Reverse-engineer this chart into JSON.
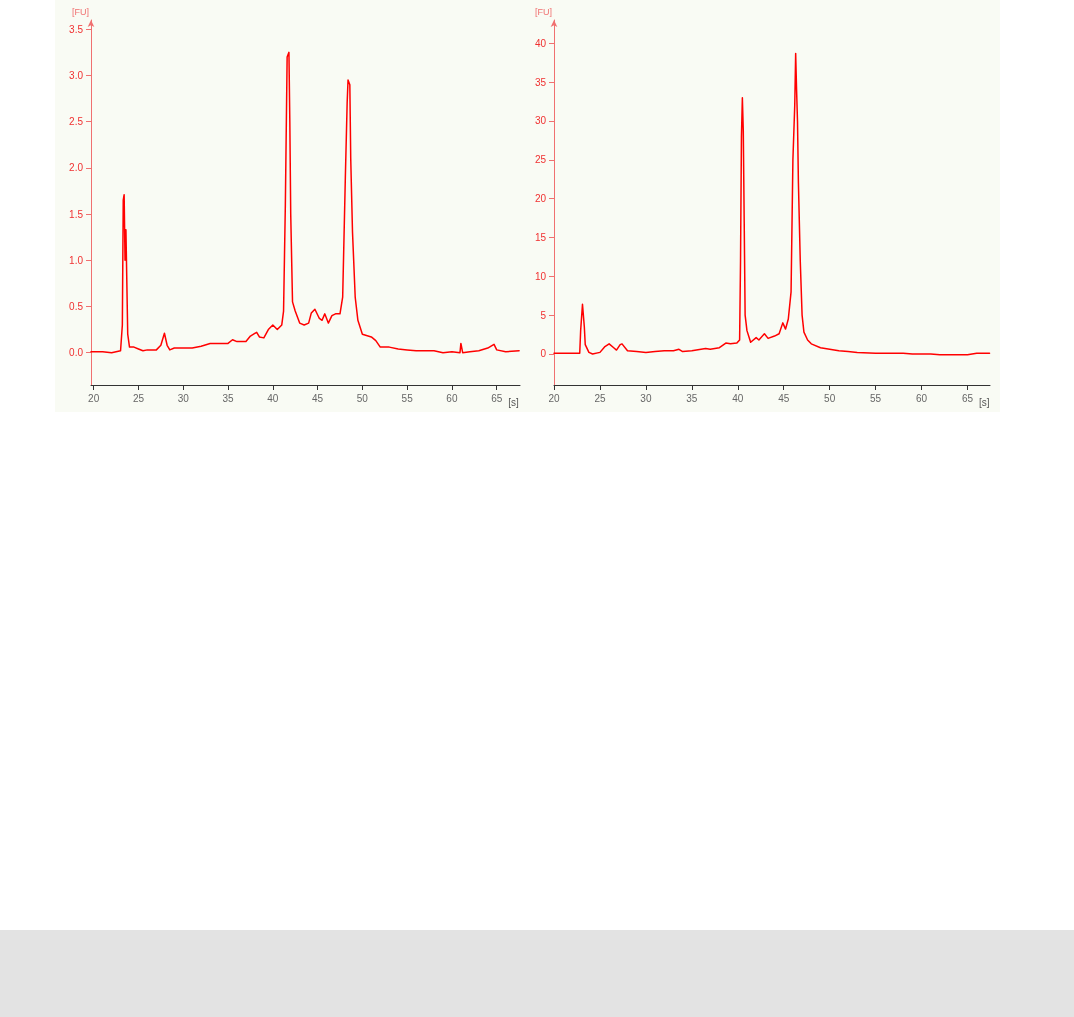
{
  "chart_data": [
    {
      "type": "line",
      "xlabel": "[s]",
      "ylabel": "[FU]",
      "xlim": [
        19.7,
        67.6
      ],
      "ylim": [
        -0.35,
        3.6
      ],
      "xticks": [
        20,
        25,
        30,
        35,
        40,
        45,
        50,
        55,
        60,
        65
      ],
      "yticks": [
        {
          "value": 0,
          "label": "0.0"
        },
        {
          "value": 0.5,
          "label": "0.5"
        },
        {
          "value": 1,
          "label": "1.0"
        },
        {
          "value": 1.5,
          "label": "1.5"
        },
        {
          "value": 2,
          "label": "2.0"
        },
        {
          "value": 2.5,
          "label": "2.5"
        },
        {
          "value": 3,
          "label": "3.0"
        },
        {
          "value": 3.5,
          "label": "3.5"
        }
      ],
      "grid": false,
      "marker": "none",
      "line_style": "solid",
      "x": [
        19.7,
        21,
        22,
        23.0,
        23.2,
        23.3,
        23.4,
        23.5,
        23.6,
        23.8,
        24.0,
        24.5,
        25.0,
        25.5,
        26,
        27,
        27.5,
        27.9,
        28.2,
        28.5,
        29,
        30,
        31,
        32,
        33,
        34,
        35,
        35.5,
        36,
        37,
        37.5,
        38.2,
        38.5,
        39,
        39.5,
        40,
        40.5,
        41,
        41.2,
        41.4,
        41.6,
        41.8,
        41.9,
        42.0,
        42.2,
        42.5,
        43,
        43.5,
        44,
        44.3,
        44.7,
        45.2,
        45.5,
        45.8,
        46.2,
        46.6,
        47,
        47.5,
        47.8,
        48.1,
        48.3,
        48.4,
        48.6,
        48.7,
        48.9,
        49.2,
        49.5,
        50,
        51,
        51.5,
        52,
        53,
        54,
        55,
        56,
        57,
        58,
        59,
        60,
        60.9,
        61.0,
        61.2,
        62,
        63,
        64,
        64.7,
        65,
        66,
        67.5
      ],
      "series": [
        {
          "color": "#ff0000",
          "values": [
            0.01,
            0.01,
            0.0,
            0.02,
            0.3,
            1.65,
            1.71,
            1.0,
            1.33,
            0.2,
            0.06,
            0.06,
            0.04,
            0.02,
            0.03,
            0.03,
            0.08,
            0.21,
            0.08,
            0.03,
            0.05,
            0.05,
            0.05,
            0.07,
            0.1,
            0.1,
            0.1,
            0.14,
            0.12,
            0.12,
            0.18,
            0.22,
            0.17,
            0.16,
            0.25,
            0.3,
            0.25,
            0.3,
            0.45,
            1.6,
            3.2,
            3.25,
            2.5,
            1.5,
            0.55,
            0.45,
            0.32,
            0.3,
            0.32,
            0.43,
            0.47,
            0.37,
            0.35,
            0.42,
            0.32,
            0.4,
            0.42,
            0.42,
            0.6,
            1.9,
            2.7,
            2.95,
            2.9,
            2.1,
            1.3,
            0.6,
            0.35,
            0.2,
            0.17,
            0.13,
            0.06,
            0.06,
            0.04,
            0.03,
            0.02,
            0.02,
            0.02,
            0.0,
            0.01,
            0.0,
            0.1,
            0.0,
            0.01,
            0.02,
            0.05,
            0.09,
            0.03,
            0.01,
            0.02
          ]
        }
      ]
    },
    {
      "type": "line",
      "xlabel": "[s]",
      "ylabel": "[FU]",
      "xlim": [
        20,
        67.45
      ],
      "ylim": [
        -4,
        43
      ],
      "xticks": [
        20,
        25,
        30,
        35,
        40,
        45,
        50,
        55,
        60,
        65
      ],
      "yticks": [
        0,
        5,
        10,
        15,
        20,
        25,
        30,
        35,
        40
      ],
      "grid": false,
      "marker": "none",
      "line_style": "solid",
      "x": [
        20,
        22,
        22.8,
        22.9,
        23.1,
        23.3,
        23.4,
        23.8,
        24.2,
        25,
        25.5,
        26,
        26.5,
        26.8,
        27.2,
        27.4,
        28,
        29,
        30,
        31,
        32,
        33,
        33.6,
        34,
        35,
        36,
        36.5,
        37,
        38,
        38.7,
        39.2,
        39.9,
        40.2,
        40.3,
        40.4,
        40.5,
        40.6,
        40.7,
        40.8,
        41,
        41.4,
        42,
        42.3,
        42.9,
        43.3,
        44,
        44.5,
        44.9,
        45.2,
        45.5,
        45.8,
        46.0,
        46.2,
        46.3,
        46.4,
        46.5,
        46.6,
        46.8,
        47,
        47.2,
        47.6,
        48,
        49,
        50,
        51,
        52,
        53,
        55,
        58,
        59,
        61,
        62,
        65,
        66,
        67.4
      ],
      "series": [
        {
          "color": "#ff0000",
          "values": [
            0.1,
            0.1,
            0.1,
            3.0,
            6.4,
            3.5,
            1.2,
            0.2,
            0,
            0.2,
            0.9,
            1.3,
            0.8,
            0.5,
            1.2,
            1.3,
            0.4,
            0.3,
            0.2,
            0.3,
            0.4,
            0.4,
            0.6,
            0.3,
            0.4,
            0.6,
            0.7,
            0.6,
            0.8,
            1.4,
            1.3,
            1.4,
            1.8,
            12,
            28,
            33,
            28.7,
            17,
            5,
            3,
            1.5,
            2.1,
            1.8,
            2.6,
            2,
            2.3,
            2.6,
            4,
            3.2,
            4.5,
            8,
            25,
            32,
            38.7,
            34,
            30,
            22,
            12,
            5,
            2.8,
            1.8,
            1.3,
            0.8,
            0.6,
            0.4,
            0.3,
            0.2,
            0.1,
            0.1,
            0,
            0,
            -0.1,
            -0.1,
            0.1,
            0.1
          ]
        }
      ]
    }
  ]
}
